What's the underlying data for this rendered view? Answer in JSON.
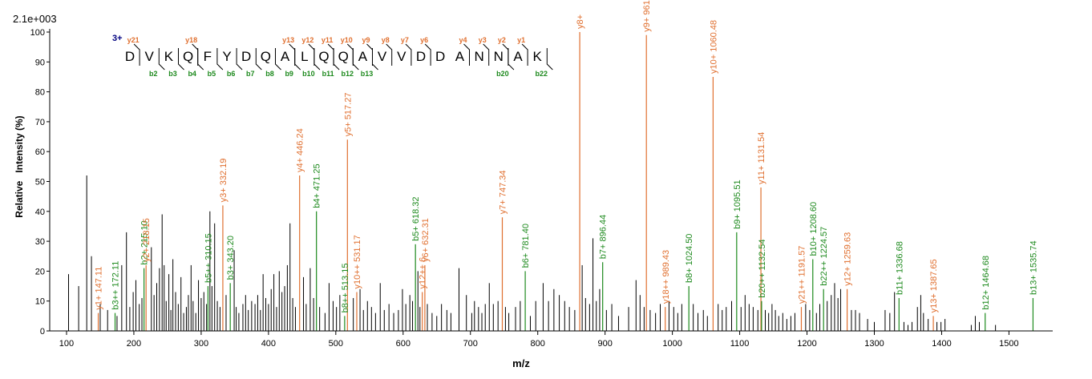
{
  "chart_data": {
    "type": "bar",
    "scale_label": "2.1e+003",
    "xlabel": "m/z",
    "ylabel": "Relative   Intensity (%)",
    "xlim": [
      75,
      1565
    ],
    "ylim": [
      0,
      100
    ],
    "xticks": [
      100,
      200,
      300,
      400,
      500,
      600,
      700,
      800,
      900,
      1000,
      1100,
      1200,
      1300,
      1400,
      1500
    ],
    "yticks": [
      0,
      10,
      20,
      30,
      40,
      50,
      60,
      70,
      80,
      90,
      100
    ],
    "colors": {
      "y_ion": "#e07030",
      "b_ion": "#1e8a1e",
      "other": "#000000",
      "charge": "#000080"
    },
    "peptide": {
      "charge": "3+",
      "sequence": [
        "D",
        "V",
        "K",
        "Q",
        "F",
        "Y",
        "D",
        "Q",
        "A",
        "L",
        "Q",
        "Q",
        "A",
        "V",
        "V",
        "D",
        "D",
        "A",
        "N",
        "N",
        "A",
        "K"
      ],
      "y_markers": [
        {
          "label": "y21",
          "after": 1
        },
        {
          "label": "y18",
          "after": 4
        },
        {
          "label": "y13",
          "after": 9
        },
        {
          "label": "y12",
          "after": 10
        },
        {
          "label": "y11",
          "after": 11
        },
        {
          "label": "y10",
          "after": 12
        },
        {
          "label": "y9",
          "after": 13
        },
        {
          "label": "y8",
          "after": 14
        },
        {
          "label": "y7",
          "after": 15
        },
        {
          "label": "y6",
          "after": 16
        },
        {
          "label": "y4",
          "after": 18
        },
        {
          "label": "y3",
          "after": 19
        },
        {
          "label": "y2",
          "after": 20
        },
        {
          "label": "y1",
          "after": 21
        }
      ],
      "b_markers": [
        {
          "label": "b2",
          "after": 2
        },
        {
          "label": "b3",
          "after": 3
        },
        {
          "label": "b4",
          "after": 4
        },
        {
          "label": "b5",
          "after": 5
        },
        {
          "label": "b6",
          "after": 6
        },
        {
          "label": "b7",
          "after": 7
        },
        {
          "label": "b8",
          "after": 8
        },
        {
          "label": "b9",
          "after": 9
        },
        {
          "label": "b10",
          "after": 10
        },
        {
          "label": "b11",
          "after": 11
        },
        {
          "label": "b12",
          "after": 12
        },
        {
          "label": "b13",
          "after": 13
        },
        {
          "label": "b20",
          "after": 20
        },
        {
          "label": "b22",
          "after": 22
        }
      ]
    },
    "labeled_peaks": [
      {
        "label": "y1+ 147.11",
        "mz": 147.11,
        "intensity": 6,
        "ion": "y"
      },
      {
        "label": "b3++ 172.11",
        "mz": 172.11,
        "intensity": 6,
        "ion": "b"
      },
      {
        "label": "b2+ 215.10",
        "mz": 215.1,
        "intensity": 21,
        "ion": "b"
      },
      {
        "label": "y2+ 218.15",
        "mz": 218.15,
        "intensity": 22,
        "ion": "y"
      },
      {
        "label": "b5++ 310.15",
        "mz": 310.15,
        "intensity": 15,
        "ion": "b"
      },
      {
        "label": "y3+ 332.19",
        "mz": 332.19,
        "intensity": 42,
        "ion": "y"
      },
      {
        "label": "b3+ 343.20",
        "mz": 343.2,
        "intensity": 16,
        "ion": "b"
      },
      {
        "label": "y4+ 446.24",
        "mz": 446.24,
        "intensity": 52,
        "ion": "y"
      },
      {
        "label": "b4+ 471.25",
        "mz": 471.25,
        "intensity": 40,
        "ion": "b"
      },
      {
        "label": "b8++ 513.15",
        "mz": 513.15,
        "intensity": 5,
        "ion": "b"
      },
      {
        "label": "y5+ 517.27",
        "mz": 517.27,
        "intensity": 64,
        "ion": "y"
      },
      {
        "label": "y10++ 531.17",
        "mz": 531.17,
        "intensity": 13,
        "ion": "y"
      },
      {
        "label": "b5+ 618.32",
        "mz": 618.32,
        "intensity": 29,
        "ion": "b"
      },
      {
        "label": "y12++ 6",
        "mz": 628.5,
        "intensity": 13,
        "ion": "y"
      },
      {
        "label": "y6+ 632.31",
        "mz": 632.31,
        "intensity": 22,
        "ion": "y"
      },
      {
        "label": "y7+ 747.34",
        "mz": 747.34,
        "intensity": 38,
        "ion": "y"
      },
      {
        "label": "b6+ 781.40",
        "mz": 781.4,
        "intensity": 20,
        "ion": "b"
      },
      {
        "label": "y8+",
        "mz": 862.38,
        "intensity": 100,
        "ion": "y"
      },
      {
        "label": "b7+ 896.44",
        "mz": 896.44,
        "intensity": 23,
        "ion": "b"
      },
      {
        "label": "y9+ 961.4",
        "mz": 961.4,
        "intensity": 99,
        "ion": "y"
      },
      {
        "label": "y18++ 989.43",
        "mz": 989.43,
        "intensity": 8,
        "ion": "y"
      },
      {
        "label": "b8+ 1024.50",
        "mz": 1024.5,
        "intensity": 15,
        "ion": "b"
      },
      {
        "label": "y10+ 1060.48",
        "mz": 1060.48,
        "intensity": 85,
        "ion": "y"
      },
      {
        "label": "b9+ 1095.51",
        "mz": 1095.51,
        "intensity": 33,
        "ion": "b"
      },
      {
        "label": "y11+ 1131.54",
        "mz": 1131.54,
        "intensity": 48,
        "ion": "y"
      },
      {
        "label": "b20++ 1132.54",
        "mz": 1132.54,
        "intensity": 10,
        "ion": "b"
      },
      {
        "label": "y21++ 1191.57",
        "mz": 1191.57,
        "intensity": 8,
        "ion": "y"
      },
      {
        "label": "b10+ 1208.60",
        "mz": 1208.6,
        "intensity": 24,
        "ion": "b"
      },
      {
        "label": "b22++ 1224.57",
        "mz": 1224.57,
        "intensity": 14,
        "ion": "b"
      },
      {
        "label": "y12+ 1259.63",
        "mz": 1259.63,
        "intensity": 14,
        "ion": "y"
      },
      {
        "label": "b11+ 1336.68",
        "mz": 1336.68,
        "intensity": 11,
        "ion": "b"
      },
      {
        "label": "y13+ 1387.65",
        "mz": 1387.65,
        "intensity": 5,
        "ion": "y"
      },
      {
        "label": "b12+ 1464.68",
        "mz": 1464.68,
        "intensity": 6,
        "ion": "b"
      },
      {
        "label": "b13+ 1535.74",
        "mz": 1535.74,
        "intensity": 11,
        "ion": "b"
      }
    ],
    "other_peaks": [
      [
        103,
        19
      ],
      [
        118,
        15
      ],
      [
        130,
        52
      ],
      [
        137,
        25
      ],
      [
        150,
        9
      ],
      [
        161,
        7
      ],
      [
        175,
        5
      ],
      [
        182,
        22
      ],
      [
        189,
        33
      ],
      [
        194,
        8
      ],
      [
        199,
        13
      ],
      [
        203,
        17
      ],
      [
        208,
        9
      ],
      [
        212,
        11
      ],
      [
        226,
        28
      ],
      [
        230,
        12
      ],
      [
        234,
        16
      ],
      [
        238,
        21
      ],
      [
        242,
        39
      ],
      [
        245,
        22
      ],
      [
        248,
        10
      ],
      [
        252,
        19
      ],
      [
        255,
        7
      ],
      [
        258,
        24
      ],
      [
        262,
        13
      ],
      [
        266,
        9
      ],
      [
        270,
        18
      ],
      [
        274,
        6
      ],
      [
        278,
        8
      ],
      [
        281,
        12
      ],
      [
        285,
        22
      ],
      [
        288,
        10
      ],
      [
        292,
        6
      ],
      [
        296,
        17
      ],
      [
        300,
        11
      ],
      [
        304,
        13
      ],
      [
        308,
        9
      ],
      [
        313,
        40
      ],
      [
        316,
        15
      ],
      [
        320,
        36
      ],
      [
        324,
        10
      ],
      [
        328,
        8
      ],
      [
        337,
        12
      ],
      [
        349,
        27
      ],
      [
        352,
        8
      ],
      [
        356,
        6
      ],
      [
        362,
        9
      ],
      [
        366,
        12
      ],
      [
        370,
        7
      ],
      [
        375,
        10
      ],
      [
        380,
        9
      ],
      [
        384,
        12
      ],
      [
        388,
        7
      ],
      [
        392,
        19
      ],
      [
        396,
        11
      ],
      [
        400,
        9
      ],
      [
        404,
        14
      ],
      [
        408,
        19
      ],
      [
        412,
        8
      ],
      [
        416,
        20
      ],
      [
        420,
        13
      ],
      [
        424,
        15
      ],
      [
        428,
        22
      ],
      [
        432,
        36
      ],
      [
        436,
        11
      ],
      [
        440,
        8
      ],
      [
        452,
        18
      ],
      [
        456,
        9
      ],
      [
        462,
        21
      ],
      [
        467,
        11
      ],
      [
        476,
        8
      ],
      [
        484,
        6
      ],
      [
        490,
        16
      ],
      [
        496,
        10
      ],
      [
        501,
        8
      ],
      [
        506,
        12
      ],
      [
        526,
        11
      ],
      [
        536,
        14
      ],
      [
        541,
        7
      ],
      [
        547,
        10
      ],
      [
        553,
        8
      ],
      [
        559,
        6
      ],
      [
        566,
        16
      ],
      [
        572,
        7
      ],
      [
        579,
        9
      ],
      [
        586,
        6
      ],
      [
        593,
        7
      ],
      [
        599,
        14
      ],
      [
        604,
        9
      ],
      [
        610,
        12
      ],
      [
        614,
        10
      ],
      [
        622,
        20
      ],
      [
        625,
        8
      ],
      [
        636,
        9
      ],
      [
        643,
        6
      ],
      [
        650,
        5
      ],
      [
        657,
        9
      ],
      [
        665,
        7
      ],
      [
        671,
        6
      ],
      [
        683,
        21
      ],
      [
        694,
        12
      ],
      [
        702,
        6
      ],
      [
        706,
        10
      ],
      [
        712,
        8
      ],
      [
        717,
        6
      ],
      [
        722,
        9
      ],
      [
        728,
        16
      ],
      [
        734,
        9
      ],
      [
        741,
        10
      ],
      [
        752,
        8
      ],
      [
        757,
        6
      ],
      [
        767,
        8
      ],
      [
        774,
        10
      ],
      [
        789,
        5
      ],
      [
        797,
        10
      ],
      [
        808,
        16
      ],
      [
        816,
        10
      ],
      [
        824,
        14
      ],
      [
        832,
        12
      ],
      [
        840,
        10
      ],
      [
        847,
        8
      ],
      [
        855,
        7
      ],
      [
        866,
        22
      ],
      [
        871,
        11
      ],
      [
        877,
        9
      ],
      [
        882,
        31
      ],
      [
        887,
        10
      ],
      [
        892,
        14
      ],
      [
        902,
        7
      ],
      [
        910,
        9
      ],
      [
        920,
        5
      ],
      [
        935,
        8
      ],
      [
        946,
        17
      ],
      [
        952,
        12
      ],
      [
        958,
        8
      ],
      [
        967,
        7
      ],
      [
        975,
        6
      ],
      [
        982,
        9
      ],
      [
        995,
        10
      ],
      [
        1002,
        8
      ],
      [
        1008,
        6
      ],
      [
        1014,
        9
      ],
      [
        1031,
        9
      ],
      [
        1038,
        6
      ],
      [
        1046,
        7
      ],
      [
        1052,
        5
      ],
      [
        1068,
        9
      ],
      [
        1074,
        7
      ],
      [
        1080,
        8
      ],
      [
        1088,
        10
      ],
      [
        1102,
        8
      ],
      [
        1108,
        12
      ],
      [
        1114,
        9
      ],
      [
        1120,
        8
      ],
      [
        1127,
        7
      ],
      [
        1138,
        7
      ],
      [
        1143,
        6
      ],
      [
        1148,
        9
      ],
      [
        1153,
        7
      ],
      [
        1158,
        5
      ],
      [
        1164,
        6
      ],
      [
        1170,
        4
      ],
      [
        1176,
        5
      ],
      [
        1182,
        6
      ],
      [
        1198,
        9
      ],
      [
        1204,
        7
      ],
      [
        1214,
        6
      ],
      [
        1219,
        9
      ],
      [
        1230,
        10
      ],
      [
        1236,
        12
      ],
      [
        1241,
        16
      ],
      [
        1246,
        11
      ],
      [
        1250,
        14
      ],
      [
        1266,
        7
      ],
      [
        1272,
        7
      ],
      [
        1278,
        6
      ],
      [
        1290,
        4
      ],
      [
        1300,
        3
      ],
      [
        1316,
        7
      ],
      [
        1323,
        6
      ],
      [
        1330,
        13
      ],
      [
        1344,
        3
      ],
      [
        1350,
        2
      ],
      [
        1356,
        3
      ],
      [
        1364,
        8
      ],
      [
        1369,
        12
      ],
      [
        1373,
        6
      ],
      [
        1380,
        4
      ],
      [
        1393,
        3
      ],
      [
        1399,
        3
      ],
      [
        1405,
        4
      ],
      [
        1444,
        2
      ],
      [
        1450,
        5
      ],
      [
        1456,
        3
      ],
      [
        1480,
        2
      ]
    ]
  }
}
